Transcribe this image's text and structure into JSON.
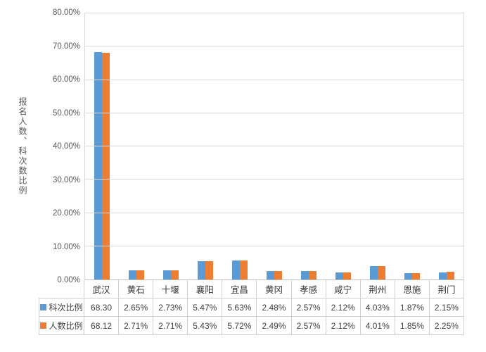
{
  "chart_data": {
    "type": "bar",
    "title": "",
    "ylabel": "报名人数、科次数比例",
    "xlabel": "",
    "ylim": [
      0,
      80
    ],
    "ytick_labels": [
      "0.00%",
      "10.00%",
      "20.00%",
      "30.00%",
      "40.00%",
      "50.00%",
      "60.00%",
      "70.00%",
      "80.00%"
    ],
    "grid": true,
    "legend_position": "data-table-left",
    "categories": [
      "武汉",
      "黄石",
      "十堰",
      "襄阳",
      "宜昌",
      "黄冈",
      "孝感",
      "咸宁",
      "荆州",
      "恩施",
      "荆门"
    ],
    "series": [
      {
        "name": "科次比例",
        "color": "#5B9BD5",
        "values": [
          68.3,
          2.65,
          2.73,
          5.47,
          5.63,
          2.48,
          2.57,
          2.12,
          4.03,
          1.87,
          2.15
        ],
        "labels": [
          "68.30",
          "2.65%",
          "2.73%",
          "5.47%",
          "5.63%",
          "2.48%",
          "2.57%",
          "2.12%",
          "4.03%",
          "1.87%",
          "2.15%"
        ]
      },
      {
        "name": "人数比例",
        "color": "#ED7D31",
        "values": [
          68.12,
          2.71,
          2.71,
          5.43,
          5.72,
          2.49,
          2.57,
          2.12,
          4.01,
          1.85,
          2.25
        ],
        "labels": [
          "68.12",
          "2.71%",
          "2.71%",
          "5.43%",
          "5.72%",
          "2.49%",
          "2.57%",
          "2.12%",
          "4.01%",
          "1.85%",
          "2.25%"
        ]
      }
    ]
  }
}
